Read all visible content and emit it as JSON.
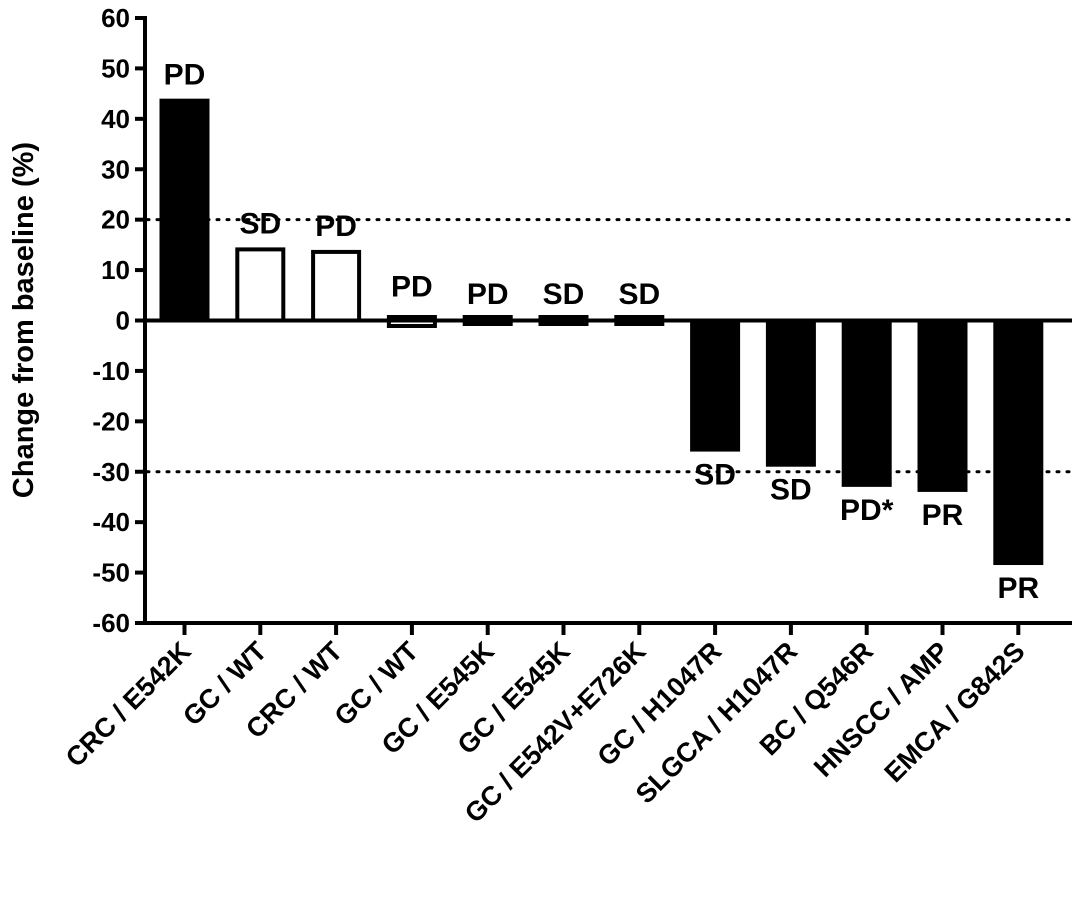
{
  "chart_data": {
    "type": "bar",
    "title": "",
    "xlabel": "",
    "ylabel": "Change from baseline (%)",
    "ylim": [
      -60,
      60
    ],
    "yticks": [
      60,
      50,
      40,
      30,
      20,
      10,
      0,
      -10,
      -20,
      -30,
      -40,
      -50,
      -60
    ],
    "reference_lines": [
      20,
      -30
    ],
    "categories": [
      "CRC / E542K",
      "GC / WT",
      "CRC / WT",
      "GC / WT",
      "GC / E545K",
      "GC / E545K",
      "GC / E542V+E726K",
      "GC / H1047R",
      "SLGCA / H1047R",
      "BC / Q546R",
      "HNSCC / AMP",
      "EMCA / G842S"
    ],
    "values": [
      44,
      14.5,
      14,
      2,
      0.5,
      0.5,
      0.5,
      -26,
      -29,
      -33,
      -34,
      -48.5
    ],
    "responses": [
      "PD",
      "SD",
      "PD",
      "PD",
      "PD",
      "SD",
      "SD",
      "SD",
      "SD",
      "PD*",
      "PR",
      "PR"
    ],
    "fill": [
      "filled",
      "open",
      "open",
      "open",
      "filled",
      "filled",
      "filled",
      "filled",
      "filled",
      "filled",
      "filled",
      "filled"
    ],
    "colors": {
      "bar": "#000000",
      "open_bar_fill": "#ffffff"
    },
    "grid": false
  }
}
